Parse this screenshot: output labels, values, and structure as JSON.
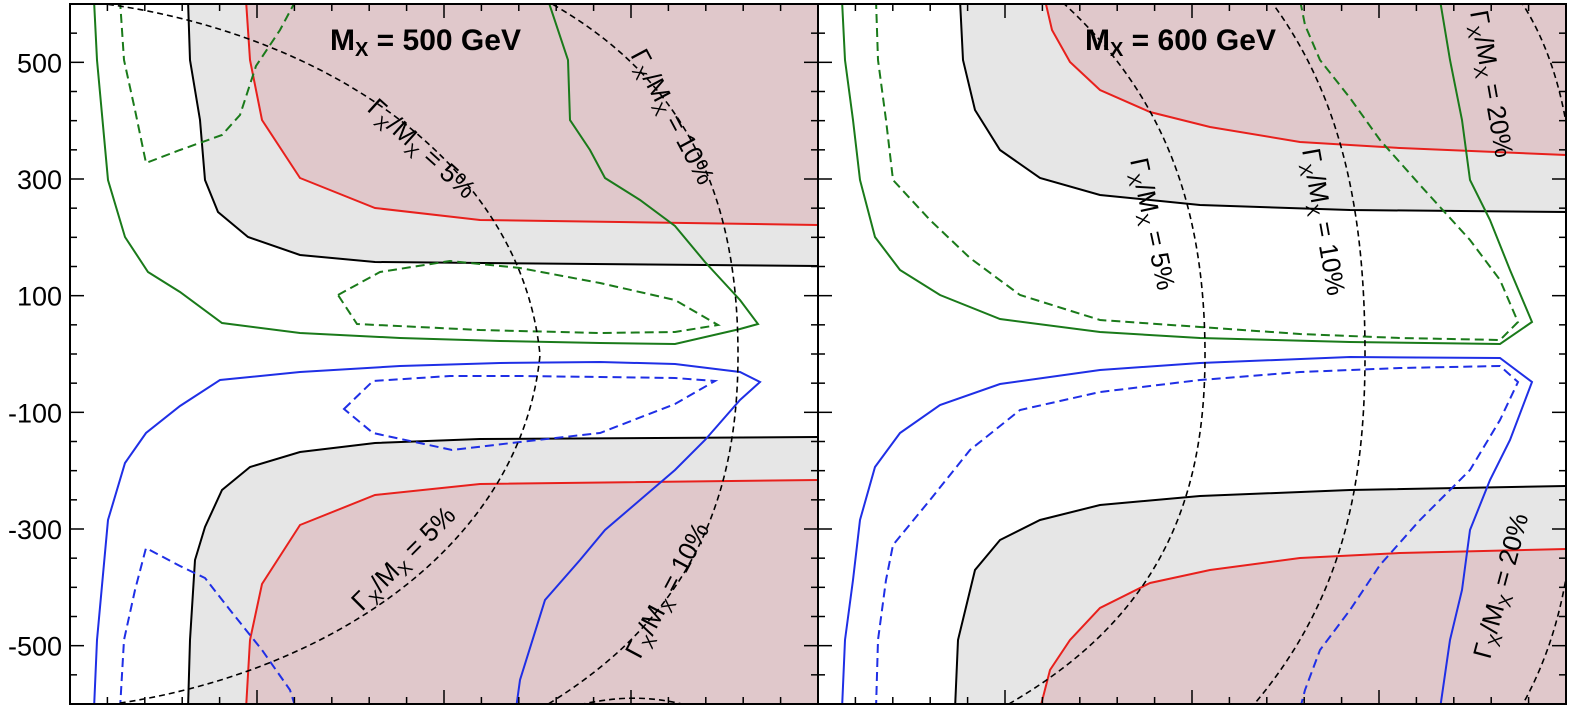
{
  "chart_data": {
    "type": "contour",
    "ylim": [
      -600,
      600
    ],
    "yticks": [
      500,
      300,
      100,
      -100,
      -300,
      -500
    ],
    "ytick_labels": [
      "500",
      "300",
      "100",
      "-100",
      "-300",
      "-500"
    ],
    "xlabel": "",
    "ylabel": "",
    "colors": {
      "red": "#e8201c",
      "black": "#000000",
      "green": "#1a7a1a",
      "blue": "#1f2fe6",
      "fill_gray": "#e6e6e6",
      "fill_rose": "#e0c8cb",
      "width_contour": "#000000"
    },
    "panels": [
      {
        "title": "M",
        "title_sub": "X",
        "title_rest": " = 500 GeV",
        "width_labels": [
          {
            "g": "Γ",
            "s1": "X",
            "m": "/M",
            "s2": "X",
            "t": " = 5%"
          },
          {
            "g": "Γ",
            "s1": "X",
            "m": "/M",
            "s2": "X",
            "t": " = 10%"
          },
          {
            "g": "Γ",
            "s1": "X",
            "m": "/M",
            "s2": "X",
            "t": " = 5%"
          },
          {
            "g": "Γ",
            "s1": "X",
            "m": "/M",
            "s2": "X",
            "t": " = 10%"
          }
        ]
      },
      {
        "title": "M",
        "title_sub": "X",
        "title_rest": " = 600 GeV",
        "width_labels": [
          {
            "g": "Γ",
            "s1": "X",
            "m": "/M",
            "s2": "X",
            "t": " = 20%"
          },
          {
            "g": "Γ",
            "s1": "X",
            "m": "/M",
            "s2": "X",
            "t": " = 5%"
          },
          {
            "g": "Γ",
            "s1": "X",
            "m": "/M",
            "s2": "X",
            "t": " = 10%"
          },
          {
            "g": "Γ",
            "s1": "X",
            "m": "/M",
            "s2": "X",
            "t": " = 20%"
          }
        ]
      }
    ]
  }
}
